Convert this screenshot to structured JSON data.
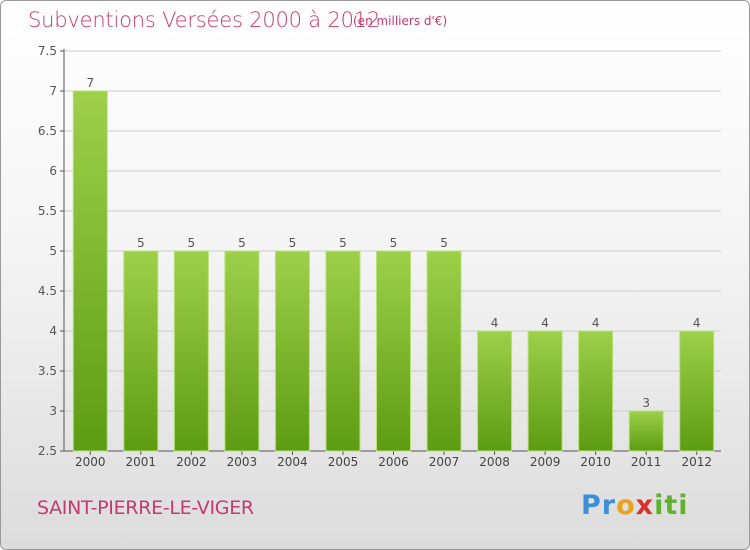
{
  "title": "Subventions Versées 2000 à 2012",
  "subtitle": "(en milliers d'€)",
  "place": "SAINT-PIERRE-LE-VIGER",
  "logo": {
    "l1": "Pr",
    "l2": "o",
    "l3": "x",
    "l4": "iti"
  },
  "colors": {
    "title": "#c43a6e",
    "bar_top": "#9ed04a",
    "bar_bottom": "#5d9c12",
    "axis": "#555555",
    "grid": "#cccccc"
  },
  "chart_data": {
    "type": "bar",
    "title": "Subventions Versées 2000 à 2012",
    "subtitle": "(en milliers d'€)",
    "xlabel": "",
    "ylabel": "",
    "categories": [
      "2000",
      "2001",
      "2002",
      "2003",
      "2004",
      "2005",
      "2006",
      "2007",
      "2008",
      "2009",
      "2010",
      "2011",
      "2012"
    ],
    "values": [
      7,
      5,
      5,
      5,
      5,
      5,
      5,
      5,
      4,
      4,
      4,
      3,
      4
    ],
    "value_labels": [
      "7",
      "5",
      "5",
      "5",
      "5",
      "5",
      "5",
      "5",
      "4",
      "4",
      "4",
      "3",
      "4"
    ],
    "ylim": [
      2.5,
      7.5
    ],
    "yticks": [
      2.5,
      3,
      3.5,
      4,
      4.5,
      5,
      5.5,
      6,
      6.5,
      7,
      7.5
    ],
    "ytick_labels": [
      "2.5",
      "3",
      "3.5",
      "4",
      "4.5",
      "5",
      "5.5",
      "6",
      "6.5",
      "7",
      "7.5"
    ],
    "grid": true,
    "legend": "none"
  }
}
